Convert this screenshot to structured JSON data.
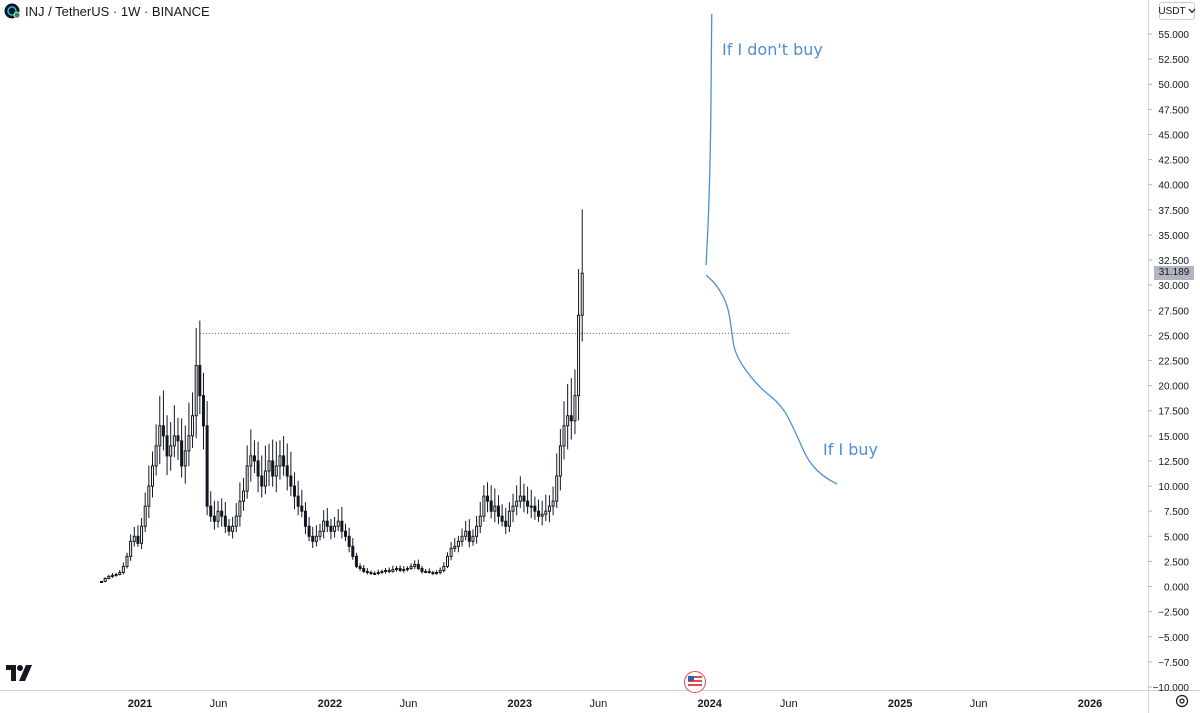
{
  "header": {
    "title": "INJ / TetherUS · 1W · BINANCE"
  },
  "currency_selector": {
    "label": "USDT",
    "chevron_icon": "chevron-down-icon"
  },
  "last_price": {
    "label": "31.189",
    "value": 31.189
  },
  "annotations": {
    "upper": "If I don't buy",
    "lower": "If I buy"
  },
  "icons": {
    "logo": "tradingview-logo",
    "flag": "us-flag-icon",
    "settings": "settings-icon"
  },
  "colors": {
    "annotation": "#4d8fd6",
    "candle_up": "#ffffff",
    "candle_down": "#131722",
    "wick": "#131722",
    "axis_text": "#131722"
  },
  "chart_data": {
    "type": "candlestick",
    "title": "INJ / TetherUS · 1W · BINANCE",
    "ylim": [
      -10,
      57
    ],
    "y_ticks": [
      55,
      52.5,
      50,
      47.5,
      45,
      42.5,
      40,
      37.5,
      35,
      32.5,
      30,
      27.5,
      25,
      22.5,
      20,
      17.5,
      15,
      12.5,
      10,
      7.5,
      5,
      2.5,
      0,
      -2.5,
      -5,
      -7.5,
      -10
    ],
    "y_tick_labels": [
      "55.000",
      "52.500",
      "50.000",
      "47.500",
      "45.000",
      "42.500",
      "40.000",
      "37.500",
      "35.000",
      "32.500",
      "30.000",
      "27.500",
      "25.000",
      "22.500",
      "20.000",
      "17.500",
      "15.000",
      "12.500",
      "10.000",
      "7.500",
      "5.000",
      "2.500",
      "0.000",
      "−2.500",
      "−5.000",
      "−7.500",
      "−10.000"
    ],
    "x_ticks": [
      {
        "label": "2021",
        "date": "2021-01-01",
        "bold": true
      },
      {
        "label": "Jun",
        "date": "2021-06-01",
        "bold": false
      },
      {
        "label": "2022",
        "date": "2022-01-01",
        "bold": true
      },
      {
        "label": "Jun",
        "date": "2022-06-01",
        "bold": false
      },
      {
        "label": "2023",
        "date": "2023-01-01",
        "bold": true
      },
      {
        "label": "Jun",
        "date": "2023-06-01",
        "bold": false
      },
      {
        "label": "2024",
        "date": "2024-01-01",
        "bold": true
      },
      {
        "label": "Jun",
        "date": "2024-06-01",
        "bold": false
      },
      {
        "label": "2025",
        "date": "2025-01-01",
        "bold": true
      },
      {
        "label": "Jun",
        "date": "2025-06-01",
        "bold": false
      },
      {
        "label": "2026",
        "date": "2026-01-01",
        "bold": true
      }
    ],
    "x_range": [
      "2020-10-05",
      "2026-04-06"
    ],
    "first_week": "2020-10-19",
    "weekly_close": [
      0.5,
      0.8,
      1.0,
      1.1,
      1.2,
      1.4,
      2.0,
      3.0,
      4.5,
      5.0,
      4.3,
      6.0,
      8.0,
      10.0,
      12.0,
      14.0,
      16.0,
      15.0,
      13.0,
      14.0,
      15.0,
      14.5,
      12.0,
      13.5,
      15.0,
      17.0,
      22.0,
      19.0,
      16.0,
      8.0,
      7.0,
      6.5,
      7.5,
      7.0,
      6.0,
      5.5,
      6.0,
      7.0,
      8.5,
      9.5,
      12.0,
      13.0,
      12.5,
      11.0,
      10.0,
      11.5,
      12.5,
      11.0,
      12.0,
      13.0,
      12.0,
      11.0,
      10.0,
      9.0,
      8.0,
      7.5,
      6.0,
      5.0,
      4.5,
      5.0,
      5.5,
      6.5,
      6.0,
      5.5,
      6.0,
      6.5,
      5.5,
      5.0,
      4.0,
      3.0,
      2.0,
      1.8,
      1.5,
      1.4,
      1.3,
      1.3,
      1.4,
      1.5,
      1.6,
      1.5,
      1.7,
      1.8,
      1.6,
      1.7,
      1.8,
      2.0,
      2.2,
      1.8,
      1.5,
      1.5,
      1.4,
      1.3,
      1.4,
      1.6,
      2.0,
      3.0,
      3.8,
      4.0,
      4.5,
      5.0,
      5.5,
      4.5,
      5.0,
      6.0,
      7.0,
      9.0,
      8.5,
      7.5,
      8.0,
      7.0,
      6.5,
      6.0,
      7.5,
      8.0,
      8.5,
      9.0,
      8.5,
      8.0,
      8.0,
      7.5,
      7.0,
      7.2,
      7.5,
      8.0,
      8.5,
      11.0,
      14.0,
      16.0,
      17.0,
      16.5,
      19.0,
      27.0,
      31.189
    ],
    "resistance_level": 25.2,
    "resistance_from": "2021-04-26",
    "resistance_to": "2024-06-03",
    "scenario_paths": [
      {
        "label": "If I don't buy",
        "points": [
          [
            "2023-12-25",
            32
          ],
          [
            "2023-12-30",
            37
          ],
          [
            "2024-01-03",
            45
          ],
          [
            "2024-01-04",
            52
          ],
          [
            "2024-01-05",
            57
          ]
        ]
      },
      {
        "label": "If I buy",
        "points": [
          [
            "2023-12-25",
            31
          ],
          [
            "2024-01-15",
            30
          ],
          [
            "2024-02-05",
            28
          ],
          [
            "2024-02-12",
            25.5
          ],
          [
            "2024-02-19",
            23
          ],
          [
            "2024-04-01",
            20
          ],
          [
            "2024-05-20",
            18
          ],
          [
            "2024-06-17",
            15
          ],
          [
            "2024-07-08",
            12.5
          ],
          [
            "2024-08-05",
            11
          ],
          [
            "2024-09-02",
            10.2
          ]
        ]
      }
    ]
  }
}
